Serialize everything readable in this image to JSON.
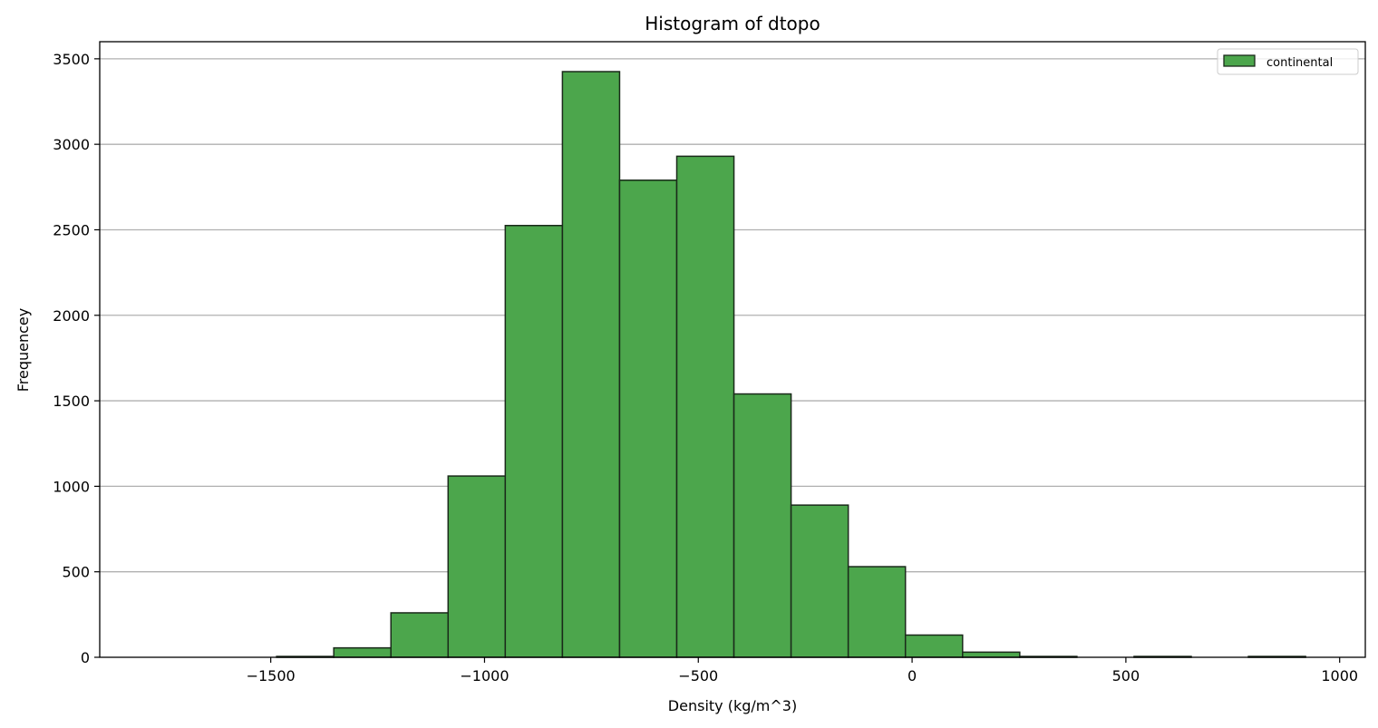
{
  "chart_data": {
    "type": "bar",
    "title": "Histogram of dtopo",
    "xlabel": "Density (kg/m^3)",
    "ylabel": "Frequencey",
    "xlim": [
      -1900,
      1060
    ],
    "ylim": [
      0,
      3600
    ],
    "xticks": [
      -1500,
      -1000,
      -500,
      0,
      500,
      1000
    ],
    "xtick_labels": [
      "−1500",
      "−1000",
      "−500",
      "0",
      "500",
      "1000"
    ],
    "yticks": [
      0,
      500,
      1000,
      1500,
      2000,
      2500,
      3000,
      3500
    ],
    "ytick_labels": [
      "0",
      "500",
      "1000",
      "1500",
      "2000",
      "2500",
      "3000",
      "3500"
    ],
    "grid": "y",
    "legend_position": "top-right",
    "bar_color": "#4ca64c",
    "edge_color": "#1a2a1a",
    "series": [
      {
        "name": "continental",
        "bin_edges": [
          -1753.7,
          -1620.0,
          -1486.3,
          -1352.6,
          -1218.9,
          -1085.2,
          -951.5,
          -817.8,
          -684.1,
          -550.4,
          -416.7,
          -283.0,
          -149.3,
          -15.6,
          118.1,
          251.8,
          385.5,
          519.2,
          652.9,
          786.6,
          920.3
        ],
        "values": [
          0,
          0,
          5,
          55,
          260,
          1060,
          2525,
          3425,
          2790,
          2930,
          1540,
          890,
          530,
          130,
          30,
          5,
          0,
          5,
          0,
          5
        ]
      }
    ]
  }
}
